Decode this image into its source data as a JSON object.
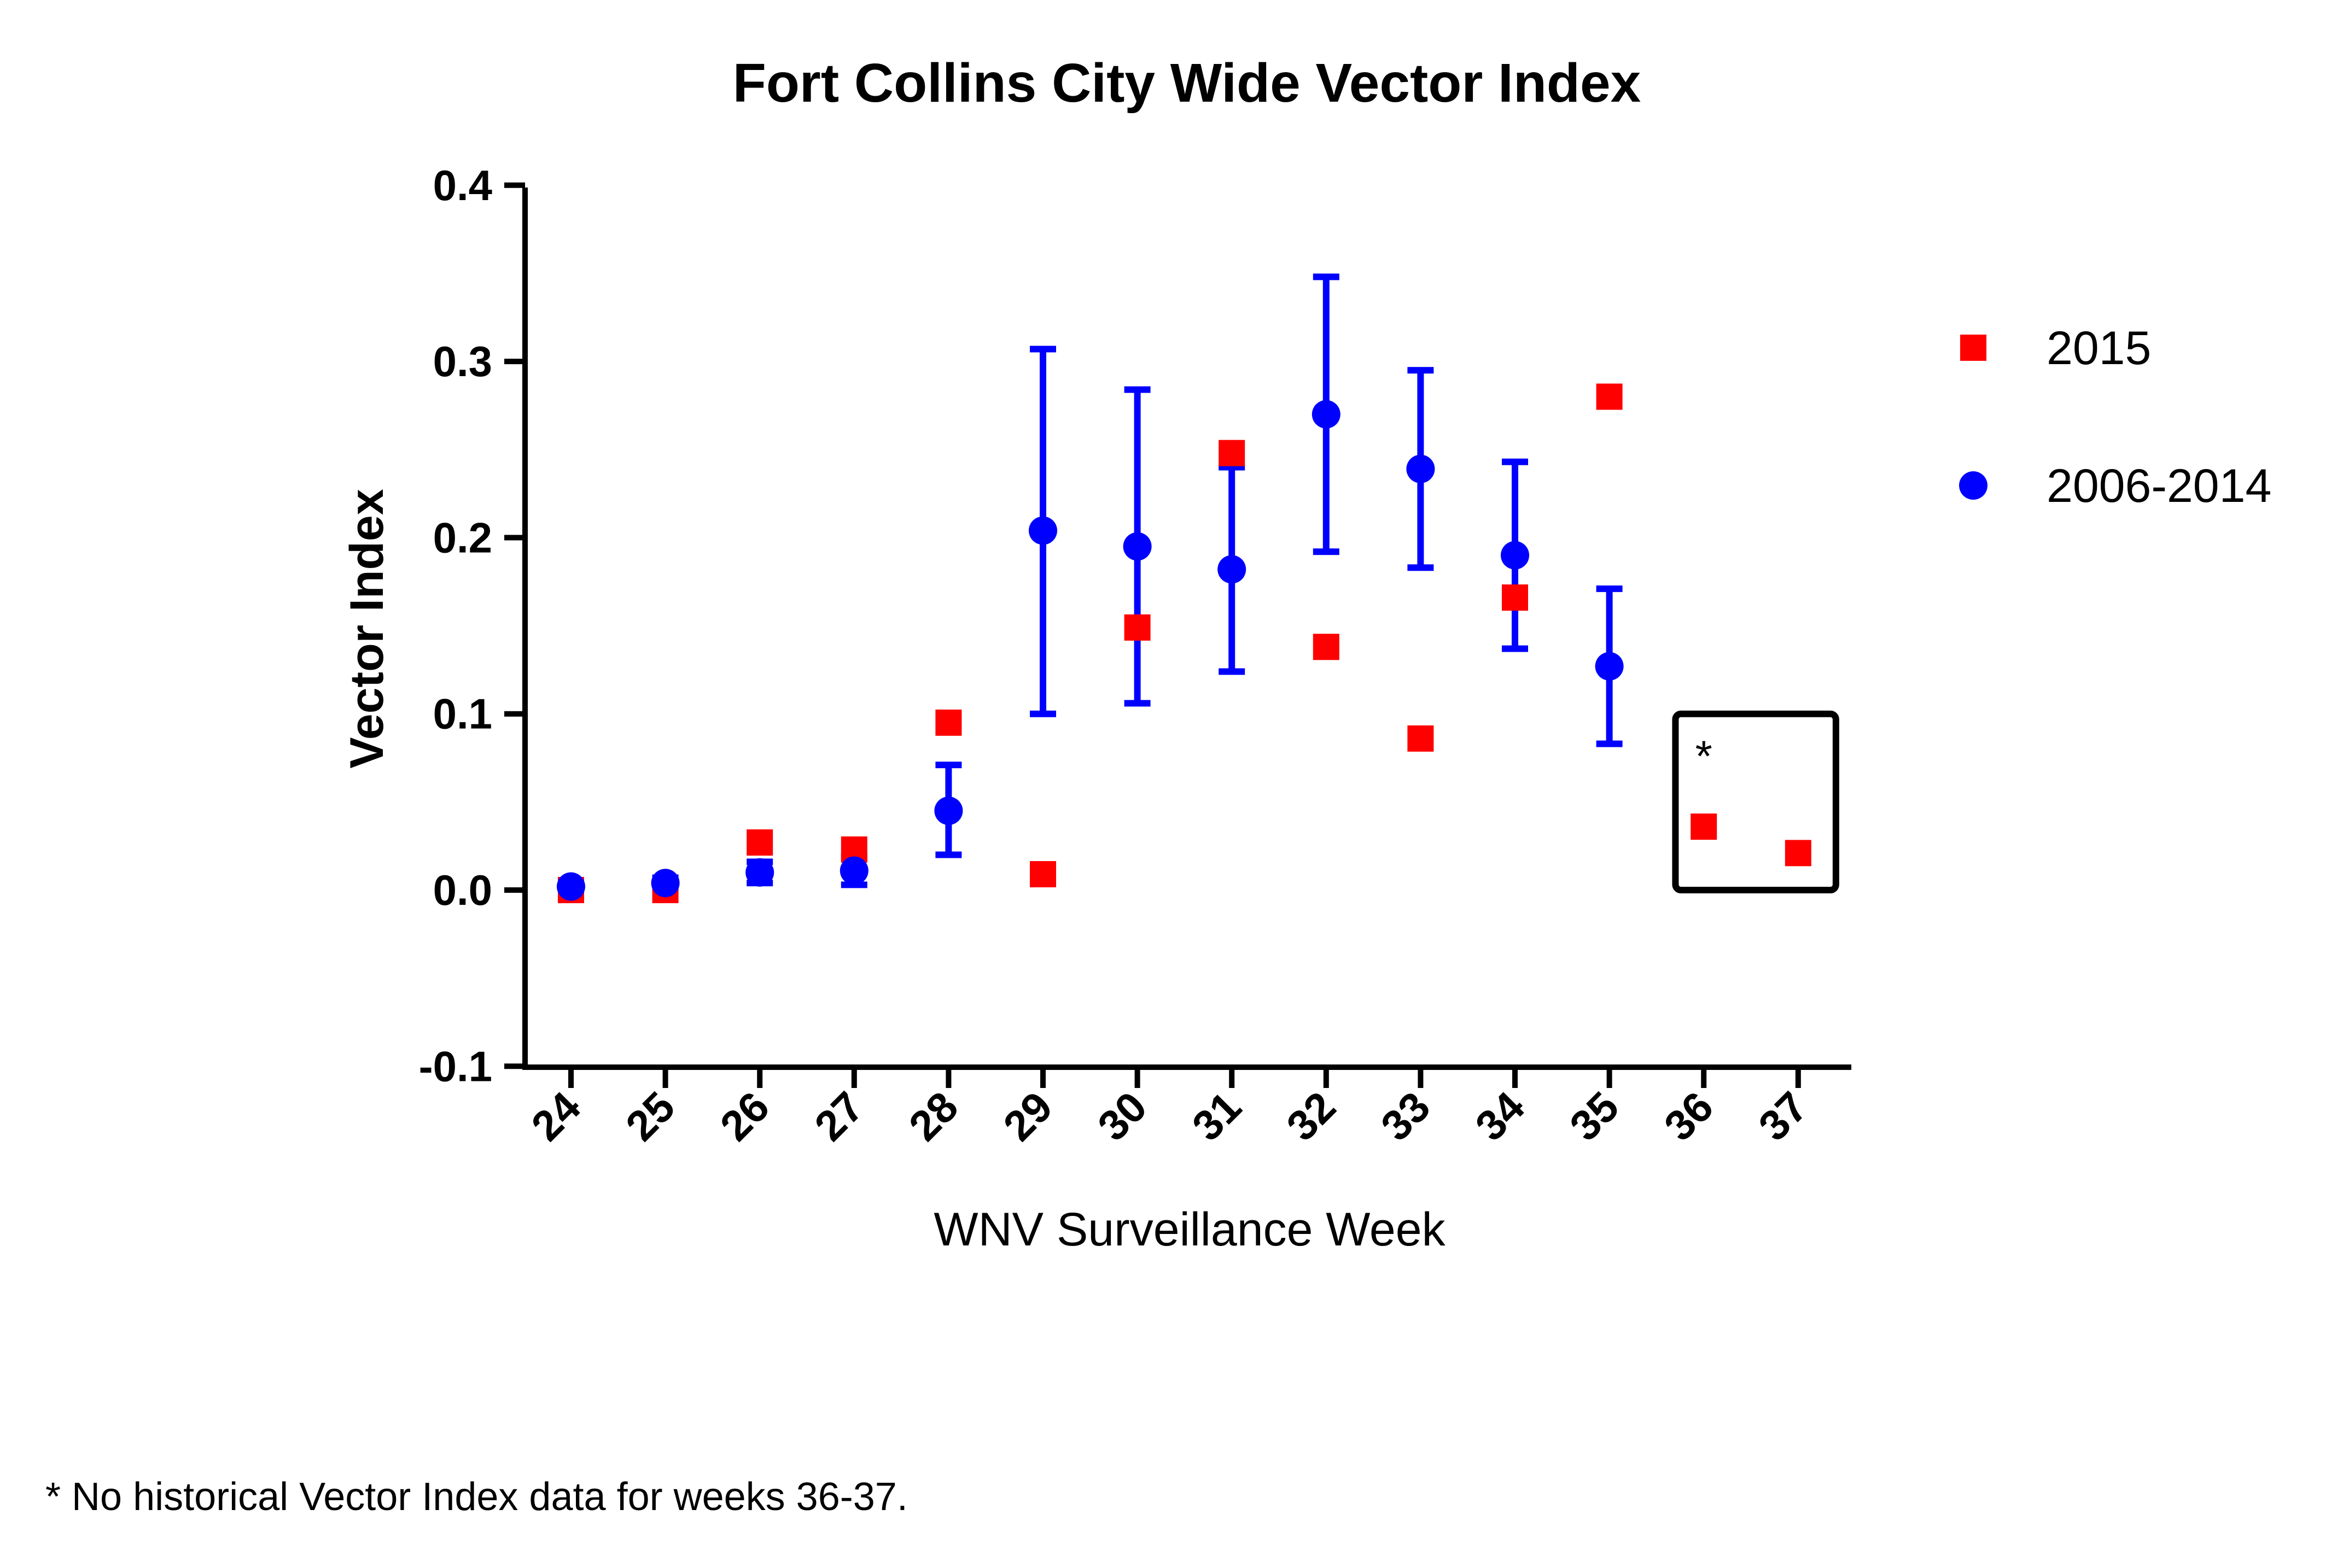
{
  "chart_data": {
    "type": "scatter",
    "title": "Fort Collins City Wide Vector Index",
    "xlabel": "WNV Surveillance Week",
    "ylabel": "Vector Index",
    "x": [
      24,
      25,
      26,
      27,
      28,
      29,
      30,
      31,
      32,
      33,
      34,
      35,
      36,
      37
    ],
    "xticks": [
      "24",
      "25",
      "26",
      "27",
      "28",
      "29",
      "30",
      "31",
      "32",
      "33",
      "34",
      "35",
      "36",
      "37"
    ],
    "ylim": [
      -0.1,
      0.4
    ],
    "yticks": [
      "-0.1",
      "0.0",
      "0.1",
      "0.2",
      "0.3",
      "0.4"
    ],
    "series": [
      {
        "name": "2015",
        "marker": "square",
        "color": "#ff0000",
        "points": [
          {
            "x": 24,
            "y": 0.0
          },
          {
            "x": 25,
            "y": 0.0
          },
          {
            "x": 26,
            "y": 0.027
          },
          {
            "x": 27,
            "y": 0.023
          },
          {
            "x": 28,
            "y": 0.095
          },
          {
            "x": 29,
            "y": 0.009
          },
          {
            "x": 30,
            "y": 0.149
          },
          {
            "x": 31,
            "y": 0.248
          },
          {
            "x": 32,
            "y": 0.138
          },
          {
            "x": 33,
            "y": 0.086
          },
          {
            "x": 34,
            "y": 0.166
          },
          {
            "x": 35,
            "y": 0.28
          },
          {
            "x": 36,
            "y": 0.036
          },
          {
            "x": 37,
            "y": 0.021
          }
        ]
      },
      {
        "name": "2006-2014",
        "marker": "circle",
        "color": "#0000ff",
        "points": [
          {
            "x": 24,
            "y": 0.002,
            "low": 0.0,
            "high": 0.004
          },
          {
            "x": 25,
            "y": 0.004,
            "low": 0.001,
            "high": 0.007
          },
          {
            "x": 26,
            "y": 0.01,
            "low": 0.004,
            "high": 0.016
          },
          {
            "x": 27,
            "y": 0.011,
            "low": 0.003,
            "high": 0.019
          },
          {
            "x": 28,
            "y": 0.045,
            "low": 0.02,
            "high": 0.071
          },
          {
            "x": 29,
            "y": 0.204,
            "low": 0.1,
            "high": 0.307
          },
          {
            "x": 30,
            "y": 0.195,
            "low": 0.106,
            "high": 0.284
          },
          {
            "x": 31,
            "y": 0.182,
            "low": 0.124,
            "high": 0.24
          },
          {
            "x": 32,
            "y": 0.27,
            "low": 0.192,
            "high": 0.348
          },
          {
            "x": 33,
            "y": 0.239,
            "low": 0.183,
            "high": 0.295
          },
          {
            "x": 34,
            "y": 0.19,
            "low": 0.137,
            "high": 0.243
          },
          {
            "x": 35,
            "y": 0.127,
            "low": 0.083,
            "high": 0.171
          }
        ]
      }
    ],
    "annotation_box": {
      "x_from": 35.7,
      "x_to": 37.4,
      "y_from": 0.0,
      "y_to": 0.1,
      "label": "*"
    },
    "legend_position": "right",
    "grid": false,
    "footnote": "* No historical Vector Index data for weeks 36-37."
  }
}
